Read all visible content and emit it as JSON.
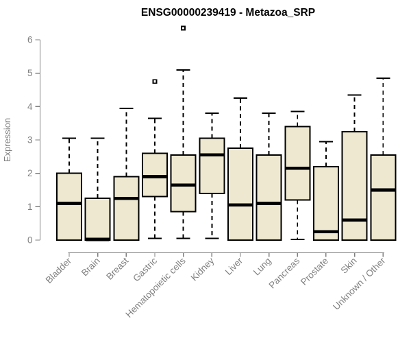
{
  "chart_data": {
    "type": "boxplot",
    "title": "ENSG00000239419 - Metazoa_SRP",
    "ylabel": "Expression",
    "xlabel": "",
    "ylim": [
      0,
      6
    ],
    "yticks": [
      0,
      1,
      2,
      3,
      4,
      5,
      6
    ],
    "grid": false,
    "legend": false,
    "categories": [
      "Bladder",
      "Brain",
      "Breast",
      "Gastric",
      "Hematopoietic cells",
      "Kidney",
      "Liver",
      "Lung",
      "Pancreas",
      "Prostate",
      "Skin",
      "Unknown / Other"
    ],
    "series": [
      {
        "name": "Bladder",
        "whisker_low": 0,
        "q1": 0,
        "median": 1.1,
        "q3": 2.0,
        "whisker_high": 3.05,
        "outliers": []
      },
      {
        "name": "Brain",
        "whisker_low": 0,
        "q1": 0,
        "median": 0.02,
        "q3": 1.25,
        "whisker_high": 3.05,
        "outliers": []
      },
      {
        "name": "Breast",
        "whisker_low": 0,
        "q1": 0,
        "median": 1.25,
        "q3": 1.9,
        "whisker_high": 3.95,
        "outliers": []
      },
      {
        "name": "Gastric",
        "whisker_low": 0.05,
        "q1": 1.3,
        "median": 1.9,
        "q3": 2.6,
        "whisker_high": 3.65,
        "outliers": [
          4.75
        ]
      },
      {
        "name": "Hematopoietic cells",
        "whisker_low": 0.05,
        "q1": 0.85,
        "median": 1.65,
        "q3": 2.55,
        "whisker_high": 5.1,
        "outliers": [
          6.35
        ]
      },
      {
        "name": "Kidney",
        "whisker_low": 0.05,
        "q1": 1.4,
        "median": 2.55,
        "q3": 3.05,
        "whisker_high": 3.8,
        "outliers": []
      },
      {
        "name": "Liver",
        "whisker_low": 0,
        "q1": 0,
        "median": 1.05,
        "q3": 2.75,
        "whisker_high": 4.25,
        "outliers": []
      },
      {
        "name": "Lung",
        "whisker_low": 0,
        "q1": 0,
        "median": 1.1,
        "q3": 2.55,
        "whisker_high": 3.8,
        "outliers": []
      },
      {
        "name": "Pancreas",
        "whisker_low": 0.02,
        "q1": 1.2,
        "median": 2.15,
        "q3": 3.4,
        "whisker_high": 3.85,
        "outliers": []
      },
      {
        "name": "Prostate",
        "whisker_low": 0,
        "q1": 0,
        "median": 0.25,
        "q3": 2.2,
        "whisker_high": 2.95,
        "outliers": []
      },
      {
        "name": "Skin",
        "whisker_low": 0,
        "q1": 0,
        "median": 0.6,
        "q3": 3.25,
        "whisker_high": 4.35,
        "outliers": []
      },
      {
        "name": "Unknown / Other",
        "whisker_low": 0,
        "q1": 0,
        "median": 1.5,
        "q3": 2.55,
        "whisker_high": 4.85,
        "outliers": []
      }
    ],
    "colors": {
      "box_fill": "#EDE8CF",
      "box_stroke": "#000000",
      "axis": "#808080",
      "title": "#000000",
      "background": "#FFFFFF"
    }
  }
}
